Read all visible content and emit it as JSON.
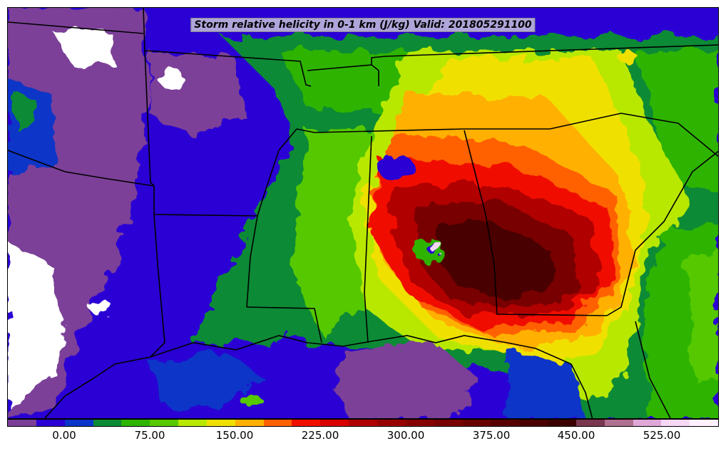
{
  "title": "Storm relative helicity in 0-1 km (J/kg) Valid: 201805291100",
  "colorbar": {
    "colors": [
      "#7b3f98",
      "#2a00d4",
      "#0a35c8",
      "#0a8a36",
      "#2db400",
      "#57c800",
      "#b8e800",
      "#f0e000",
      "#ffb000",
      "#ff6000",
      "#f01000",
      "#d80000",
      "#b00000",
      "#980000",
      "#860000",
      "#780000",
      "#680000",
      "#580000",
      "#4a0000",
      "#3c0000",
      "#7a3850",
      "#b07090",
      "#e0a8d8",
      "#f6d8f6",
      "#fff0ff"
    ],
    "ticks": [
      "0.00",
      "75.00",
      "150.00",
      "225.00",
      "300.00",
      "375.00",
      "450.00",
      "525.00"
    ]
  },
  "legend_colors": {
    "purple": "#7b3f98",
    "blue": "#2a00d4",
    "green": "#0a8a36",
    "light_green": "#57c800",
    "yellow": "#f0e000",
    "orange": "#ff8c00",
    "red": "#f01000",
    "dark_red": "#8a0000",
    "maroon": "#4a0000",
    "pink": "#f0c0f0"
  }
}
